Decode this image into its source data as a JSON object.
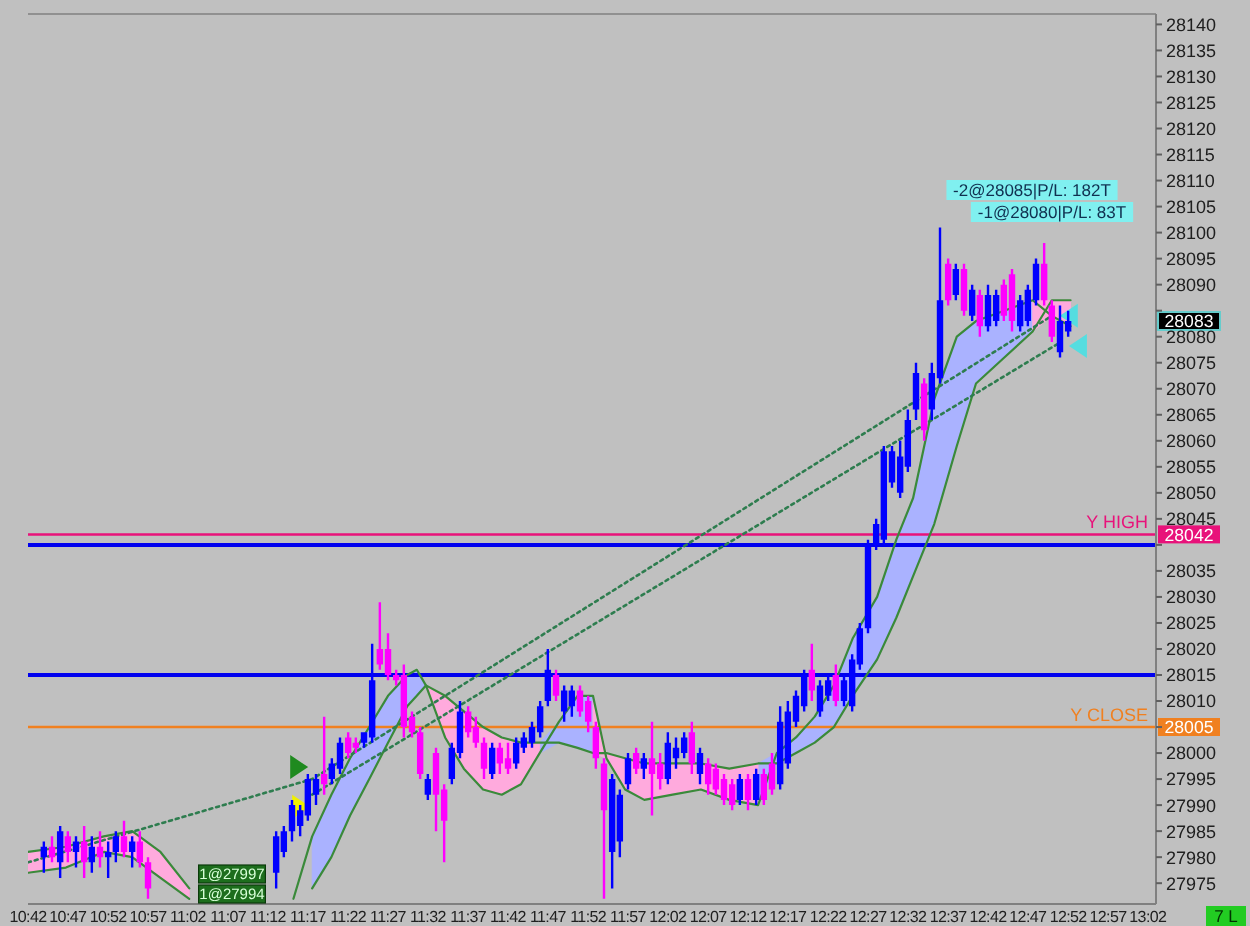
{
  "chart_data": {
    "type": "candlestick",
    "xlim": [
      10.7,
      13.05
    ],
    "ylim": [
      27971,
      28142
    ],
    "xticks": [
      {
        "value": 10.7,
        "label": "10:42"
      },
      {
        "value": 10.783,
        "label": "10:47"
      },
      {
        "value": 10.867,
        "label": "10:52"
      },
      {
        "value": 10.95,
        "label": "10:57"
      },
      {
        "value": 11.033,
        "label": "11:02"
      },
      {
        "value": 11.117,
        "label": "11:07"
      },
      {
        "value": 11.2,
        "label": "11:12"
      },
      {
        "value": 11.283,
        "label": "11:17"
      },
      {
        "value": 11.367,
        "label": "11:22"
      },
      {
        "value": 11.45,
        "label": "11:27"
      },
      {
        "value": 11.533,
        "label": "11:32"
      },
      {
        "value": 11.617,
        "label": "11:37"
      },
      {
        "value": 11.7,
        "label": "11:42"
      },
      {
        "value": 11.783,
        "label": "11:47"
      },
      {
        "value": 11.867,
        "label": "11:52"
      },
      {
        "value": 11.95,
        "label": "11:57"
      },
      {
        "value": 12.033,
        "label": "12:02"
      },
      {
        "value": 12.117,
        "label": "12:07"
      },
      {
        "value": 12.2,
        "label": "12:12"
      },
      {
        "value": 12.283,
        "label": "12:17"
      },
      {
        "value": 12.367,
        "label": "12:22"
      },
      {
        "value": 12.45,
        "label": "12:27"
      },
      {
        "value": 12.533,
        "label": "12:32"
      },
      {
        "value": 12.617,
        "label": "12:37"
      },
      {
        "value": 12.7,
        "label": "12:42"
      },
      {
        "value": 12.783,
        "label": "12:47"
      },
      {
        "value": 12.867,
        "label": "12:52"
      },
      {
        "value": 12.95,
        "label": "12:57"
      },
      {
        "value": 13.033,
        "label": "13:02"
      }
    ],
    "yticks": [
      27975,
      27980,
      27985,
      27990,
      27995,
      28000,
      {
        "value": 28005,
        "label": null
      },
      28010,
      28015,
      28020,
      28025,
      28030,
      28035,
      {
        "value": 28040,
        "label": null
      },
      28045,
      28050,
      28055,
      28060,
      28065,
      28070,
      28075,
      28080,
      {
        "value": 28085,
        "label": null
      },
      28090,
      28095,
      28100,
      28105,
      28110,
      28115,
      28120,
      28125,
      28130,
      28135,
      28140
    ],
    "series": [
      {
        "x": [
          10.733,
          10.75,
          10.767,
          10.783,
          10.8,
          10.817,
          10.833,
          10.85,
          10.867,
          10.883,
          10.9,
          10.917,
          10.933,
          10.95,
          11.217,
          11.233,
          11.25,
          11.267,
          11.283,
          11.3,
          11.317,
          11.333,
          11.35,
          11.367,
          11.383,
          11.4,
          11.417,
          11.433,
          11.45,
          11.467,
          11.483,
          11.5,
          11.517,
          11.533,
          11.55,
          11.567,
          11.583,
          11.6,
          11.617,
          11.633,
          11.65,
          11.667,
          11.683,
          11.7,
          11.717,
          11.733,
          11.75,
          11.767,
          11.783,
          11.8,
          11.817,
          11.833,
          11.85,
          11.867,
          11.883,
          11.9,
          11.917,
          11.933,
          11.95,
          11.967,
          11.983,
          12,
          12.017,
          12.033,
          12.05,
          12.067,
          12.083,
          12.1,
          12.117,
          12.133,
          12.15,
          12.167,
          12.183,
          12.2,
          12.217,
          12.233,
          12.25,
          12.267,
          12.283,
          12.3,
          12.317,
          12.333,
          12.35,
          12.367,
          12.383,
          12.4,
          12.417,
          12.433,
          12.45,
          12.467,
          12.483,
          12.5,
          12.517,
          12.533,
          12.55,
          12.567,
          12.583,
          12.6,
          12.617,
          12.633,
          12.65,
          12.667,
          12.683,
          12.7,
          12.717,
          12.733,
          12.75,
          12.767,
          12.783,
          12.8,
          12.817,
          12.833,
          12.85,
          12.867
        ],
        "ohlc": [
          [
            27980,
            27983,
            27977,
            27982
          ],
          [
            27982,
            27984,
            27979,
            27980
          ],
          [
            27979,
            27986,
            27976,
            27985
          ],
          [
            27984,
            27985,
            27979,
            27981
          ],
          [
            27981,
            27984,
            27978,
            27983
          ],
          [
            27983,
            27986,
            27976,
            27979
          ],
          [
            27979,
            27984,
            27977,
            27982
          ],
          [
            27982,
            27985,
            27978,
            27980
          ],
          [
            27980,
            27983,
            27976,
            27981
          ],
          [
            27981,
            27985,
            27979,
            27984
          ],
          [
            27984,
            27987,
            27980,
            27981
          ],
          [
            27981,
            27984,
            27978,
            27983
          ],
          [
            27983,
            27985,
            27978,
            27979
          ],
          [
            27979,
            27980,
            27972,
            27974
          ],
          [
            27977,
            27985,
            27974,
            27984
          ],
          [
            27981,
            27986,
            27980,
            27985
          ],
          [
            27985,
            27991,
            27983,
            27990
          ],
          [
            27986,
            27990,
            27984,
            27989
          ],
          [
            27988,
            27996,
            27987,
            27995
          ],
          [
            27992,
            27996,
            27990,
            27995
          ],
          [
            27996,
            28007,
            27992,
            27994
          ],
          [
            27995,
            27999,
            27994,
            27998
          ],
          [
            27997,
            28003,
            27996,
            28002
          ],
          [
            28003,
            28004,
            27999,
            28000
          ],
          [
            28002,
            28003,
            28000,
            28001
          ],
          [
            28002,
            28004,
            28001,
            28004
          ],
          [
            28003,
            28021,
            28002,
            28014
          ],
          [
            28020,
            28029,
            28016,
            28017
          ],
          [
            28020,
            28023,
            28014,
            28015
          ],
          [
            28015,
            28016,
            28013,
            28014
          ],
          [
            28015,
            28017,
            28003,
            28005
          ],
          [
            28007,
            28008,
            28003,
            28004
          ],
          [
            28004,
            28005,
            27995,
            27996
          ],
          [
            27992,
            27996,
            27991,
            27995
          ],
          [
            28000,
            28001,
            27985,
            27992
          ],
          [
            27993,
            27994,
            27979,
            27987
          ],
          [
            27995,
            28002,
            27994,
            28001
          ],
          [
            28000,
            28010,
            27999,
            28008
          ],
          [
            28008,
            28009,
            28003,
            28004
          ],
          [
            28005,
            28007,
            28001,
            28002
          ],
          [
            28002,
            28003,
            27995,
            27997
          ],
          [
            27996,
            28002,
            27995,
            28001
          ],
          [
            28001,
            28002,
            27996,
            27998
          ],
          [
            27999,
            28002,
            27996,
            27997
          ],
          [
            27998,
            28003,
            27997,
            28002
          ],
          [
            28001,
            28004,
            28000,
            28003
          ],
          [
            28002,
            28006,
            28001,
            28005
          ],
          [
            28004,
            28010,
            28003,
            28009
          ],
          [
            28010,
            28020,
            28009,
            28016
          ],
          [
            28015,
            28016,
            28010,
            28011
          ],
          [
            28008,
            28013,
            28006,
            28012
          ],
          [
            28009,
            28013,
            28007,
            28012
          ],
          [
            28012,
            28013,
            28007,
            28008
          ],
          [
            28010,
            28011,
            28004,
            28006
          ],
          [
            28005,
            28006,
            27997,
            27999
          ],
          [
            27998,
            27999,
            27972,
            27989
          ],
          [
            27981,
            27996,
            27974,
            27995
          ],
          [
            27983,
            27993,
            27980,
            27992
          ],
          [
            27994,
            28000,
            27993,
            27999
          ],
          [
            28000,
            28001,
            27996,
            27997
          ],
          [
            27997,
            28000,
            27995,
            27999
          ],
          [
            27999,
            28006,
            27988,
            27996
          ],
          [
            27998,
            28000,
            27993,
            27995
          ],
          [
            27995,
            28004,
            27994,
            28002
          ],
          [
            27999,
            28003,
            27997,
            28001
          ],
          [
            28000,
            28004,
            27999,
            28003
          ],
          [
            28004,
            28006,
            27996,
            27998
          ],
          [
            27996,
            28001,
            27994,
            28000
          ],
          [
            27998,
            27999,
            27992,
            27994
          ],
          [
            27997,
            27998,
            27992,
            27993
          ],
          [
            27995,
            27996,
            27990,
            27991
          ],
          [
            27994,
            27995,
            27989,
            27990
          ],
          [
            27991,
            27996,
            27990,
            27995
          ],
          [
            27995,
            27996,
            27989,
            27991
          ],
          [
            27991,
            27997,
            27990,
            27996
          ],
          [
            27996,
            27997,
            27990,
            27991
          ],
          [
            27998,
            28000,
            27992,
            27993
          ],
          [
            27994,
            28009,
            27993,
            28006
          ],
          [
            27998,
            28010,
            27997,
            28008
          ],
          [
            28006,
            28012,
            28005,
            28011
          ],
          [
            28009,
            28016,
            28008,
            28015
          ],
          [
            28016,
            28021,
            28010,
            28012
          ],
          [
            28008,
            28014,
            28007,
            28013
          ],
          [
            28011,
            28015,
            28010,
            28014
          ],
          [
            28015,
            28017,
            28009,
            28010
          ],
          [
            28010,
            28015,
            28009,
            28014
          ],
          [
            28009,
            28019,
            28008,
            28018
          ],
          [
            28017,
            28025,
            28016,
            28024
          ],
          [
            28024,
            28041,
            28023,
            28040
          ],
          [
            28040,
            28045,
            28039,
            28044
          ],
          [
            28041,
            28059,
            28040,
            28058
          ],
          [
            28052,
            28059,
            28051,
            28058
          ],
          [
            28050,
            28060,
            28049,
            28057
          ],
          [
            28055,
            28066,
            28054,
            28064
          ],
          [
            28066,
            28075,
            28064,
            28073
          ],
          [
            28071,
            28072,
            28060,
            28062
          ],
          [
            28066,
            28075,
            28064,
            28073
          ],
          [
            28072,
            28101,
            28071,
            28087
          ],
          [
            28094,
            28095,
            28086,
            28087
          ],
          [
            28088,
            28094,
            28087,
            28093
          ],
          [
            28093,
            28094,
            28084,
            28085
          ],
          [
            28084,
            28090,
            28083,
            28089
          ],
          [
            28088,
            28089,
            28080,
            28082
          ],
          [
            28082,
            28090,
            28081,
            28088
          ],
          [
            28083,
            28089,
            28082,
            28088
          ],
          [
            28090,
            28091,
            28083,
            28084
          ],
          [
            28092,
            28093,
            28081,
            28083
          ],
          [
            28082,
            28088,
            28081,
            28087
          ],
          [
            28083,
            28090,
            28082,
            28089
          ],
          [
            28087,
            28095,
            28086,
            28094
          ],
          [
            28094,
            28098,
            28086,
            28087
          ],
          [
            28086,
            28087,
            28079,
            28080
          ],
          [
            28077,
            28086,
            28076,
            28083
          ],
          [
            28081,
            28085,
            28080,
            28083
          ]
        ],
        "colors": [
          "#0000ff",
          "#ff00ff",
          "#0000ff",
          "#ff00ff",
          "#0000ff",
          "#ff00ff",
          "#0000ff",
          "#ff00ff",
          "#0000ff",
          "#0000ff",
          "#ff00ff",
          "#0000ff",
          "#ff00ff",
          "#ff00ff",
          "#0000ff",
          "#0000ff",
          "#0000ff",
          "#0000ff",
          "#0000ff",
          "#0000ff",
          "#ff00ff",
          "#0000ff",
          "#0000ff",
          "#ff00ff",
          "#ff00ff",
          "#0000ff",
          "#0000ff",
          "#ff00ff",
          "#ff00ff",
          "#ff00ff",
          "#ff00ff",
          "#ff00ff",
          "#ff00ff",
          "#0000ff",
          "#ff00ff",
          "#ff00ff",
          "#0000ff",
          "#0000ff",
          "#ff00ff",
          "#ff00ff",
          "#ff00ff",
          "#0000ff",
          "#ff00ff",
          "#ff00ff",
          "#0000ff",
          "#0000ff",
          "#0000ff",
          "#0000ff",
          "#0000ff",
          "#ff00ff",
          "#0000ff",
          "#0000ff",
          "#ff00ff",
          "#ff00ff",
          "#ff00ff",
          "#ff00ff",
          "#0000ff",
          "#0000ff",
          "#0000ff",
          "#ff00ff",
          "#0000ff",
          "#ff00ff",
          "#ff00ff",
          "#0000ff",
          "#0000ff",
          "#0000ff",
          "#ff00ff",
          "#0000ff",
          "#ff00ff",
          "#ff00ff",
          "#ff00ff",
          "#ff00ff",
          "#0000ff",
          "#ff00ff",
          "#0000ff",
          "#ff00ff",
          "#ff00ff",
          "#0000ff",
          "#0000ff",
          "#0000ff",
          "#0000ff",
          "#ff00ff",
          "#0000ff",
          "#0000ff",
          "#ff00ff",
          "#0000ff",
          "#0000ff",
          "#0000ff",
          "#0000ff",
          "#0000ff",
          "#0000ff",
          "#0000ff",
          "#0000ff",
          "#0000ff",
          "#0000ff",
          "#ff00ff",
          "#0000ff",
          "#0000ff",
          "#ff00ff",
          "#0000ff",
          "#ff00ff",
          "#0000ff",
          "#ff00ff",
          "#0000ff",
          "#0000ff",
          "#ff00ff",
          "#ff00ff",
          "#0000ff",
          "#0000ff",
          "#0000ff",
          "#ff00ff",
          "#ff00ff",
          "#0000ff",
          "#0000ff"
        ]
      },
      {
        "type": "line",
        "color": "#3a8a3a",
        "x": [
          10.7,
          10.779,
          10.858,
          10.917,
          10.976,
          11.036,
          11.095,
          11.253,
          11.292,
          11.332,
          11.371,
          11.411,
          11.45,
          11.49,
          11.51,
          11.529,
          11.569,
          11.608,
          11.648,
          11.687,
          11.727,
          11.766,
          11.806,
          11.845,
          11.877,
          11.905,
          11.944,
          11.984,
          12.043,
          12.102,
          12.161,
          12.221,
          12.26,
          12.3,
          12.339,
          12.379,
          12.418,
          12.469,
          12.509,
          12.544,
          12.588,
          12.635,
          12.675,
          12.734,
          12.793,
          12.833,
          12.872
        ],
        "values": [
          27977,
          27978,
          27981,
          27980,
          27976,
          27972,
          null,
          27972,
          27984,
          27992,
          27999,
          28005,
          28011,
          28015,
          28016,
          28013,
          28003,
          27997,
          27993,
          27992,
          27994,
          28000,
          28006,
          28011,
          28011,
          27999,
          27993,
          27991,
          27992,
          27993,
          27991,
          27990,
          28000,
          28003,
          28007,
          28013,
          28022,
          28030,
          28041,
          28049,
          28068,
          28080,
          28083,
          28085,
          28087,
          28084,
          28082
        ],
        "upper": [
          null,
          null,
          null,
          null,
          null,
          null,
          null,
          null,
          27984,
          27992,
          27999,
          28005,
          28011,
          28015,
          28016,
          28013,
          null,
          null,
          null,
          null,
          null,
          28002,
          28006,
          28011,
          28011,
          null,
          null,
          null,
          null,
          null,
          null,
          27998,
          28000,
          28003,
          28007,
          28013,
          28022,
          28030,
          28041,
          28049,
          28068,
          28080,
          28083,
          28085,
          28087,
          null,
          null
        ],
        "lower": [
          null,
          null,
          null,
          null,
          null,
          null,
          null,
          null,
          27974,
          27980,
          27988,
          27995,
          28002,
          28009,
          28011,
          28013,
          null,
          null,
          null,
          null,
          null,
          28000,
          28002,
          28001,
          28000,
          null,
          null,
          null,
          null,
          null,
          null,
          27990,
          27998,
          28000,
          28002,
          28005,
          28011,
          28018,
          28026,
          28034,
          28044,
          28059,
          28071,
          28076,
          28081,
          null,
          null
        ]
      },
      {
        "type": "line",
        "color": "#3a8a3a",
        "x": [
          10.7,
          10.779,
          10.858,
          10.917,
          10.976,
          11.036,
          11.095,
          11.253,
          11.292,
          11.332,
          11.371,
          11.411,
          11.45,
          11.49,
          11.51,
          11.529,
          11.569,
          11.608,
          11.648,
          11.687,
          11.727,
          11.766,
          11.806,
          11.845,
          11.877,
          11.905,
          11.944,
          11.984,
          12.043,
          12.102,
          12.161,
          12.221,
          12.26,
          12.3,
          12.339,
          12.379,
          12.418,
          12.469,
          12.509,
          12.544,
          12.588,
          12.635,
          12.675,
          12.734,
          12.793,
          12.833,
          12.872
        ],
        "values": [
          27981,
          27982,
          27984,
          27985,
          27981,
          27974,
          null,
          null,
          27974,
          27980,
          27988,
          27995,
          28002,
          28009,
          28011,
          28013,
          28011,
          28008,
          28005,
          28003,
          28002,
          28002,
          28002,
          28001,
          28000,
          28000,
          27999,
          27998,
          27998,
          27998,
          27997,
          27998,
          27998,
          28000,
          28002,
          28005,
          28011,
          28018,
          28026,
          28034,
          28044,
          28059,
          28071,
          28076,
          28081,
          28087,
          28087
        ],
        "upper": [
          27981,
          27982,
          27984,
          27985,
          27981,
          27974,
          null,
          null,
          null,
          null,
          null,
          null,
          null,
          null,
          null,
          28013,
          28011,
          28008,
          28005,
          28003,
          28002,
          28002,
          null,
          null,
          28011,
          28000,
          27999,
          27998,
          27998,
          27998,
          27997,
          27998,
          null,
          null,
          null,
          null,
          null,
          null,
          null,
          null,
          null,
          null,
          null,
          null,
          28087,
          28087,
          28087
        ],
        "lower": [
          27977,
          27978,
          27981,
          27980,
          27976,
          27972,
          null,
          null,
          null,
          null,
          null,
          null,
          null,
          null,
          null,
          28013,
          28003,
          27997,
          27993,
          27992,
          27994,
          28000,
          null,
          null,
          28000,
          27999,
          27993,
          27991,
          27992,
          27993,
          27991,
          27990,
          null,
          null,
          null,
          null,
          null,
          null,
          null,
          null,
          null,
          null,
          null,
          null,
          28081,
          28084,
          28082
        ]
      },
      {
        "type": "line",
        "color": "#2e7d4f",
        "line_style": "dotted",
        "x": [
          10.7,
          11.292,
          12.833
        ],
        "values": [
          27979,
          27995,
          28084
        ]
      },
      {
        "type": "line",
        "color": "#2e7d4f",
        "line_style": "dotted",
        "x": [
          11.292,
          12.852
        ],
        "values": [
          27992,
          28079
        ]
      }
    ],
    "ref_lines": [
      {
        "axis": "y",
        "value": 28042,
        "label": "Y HIGH",
        "color": "#e8127a"
      },
      {
        "axis": "y",
        "value": 28040,
        "color": "#0000ee"
      },
      {
        "axis": "y",
        "value": 28015,
        "color": "#0000ee"
      },
      {
        "axis": "y",
        "value": 28005,
        "label": "Y CLOSE",
        "color": "#f08020"
      }
    ],
    "annotations": [
      "-2@28085|P/L: 182T",
      "-1@28080|P/L: 83T",
      "1@27997",
      "1@27994",
      "28083",
      "28042",
      "28005",
      "7 L"
    ]
  }
}
